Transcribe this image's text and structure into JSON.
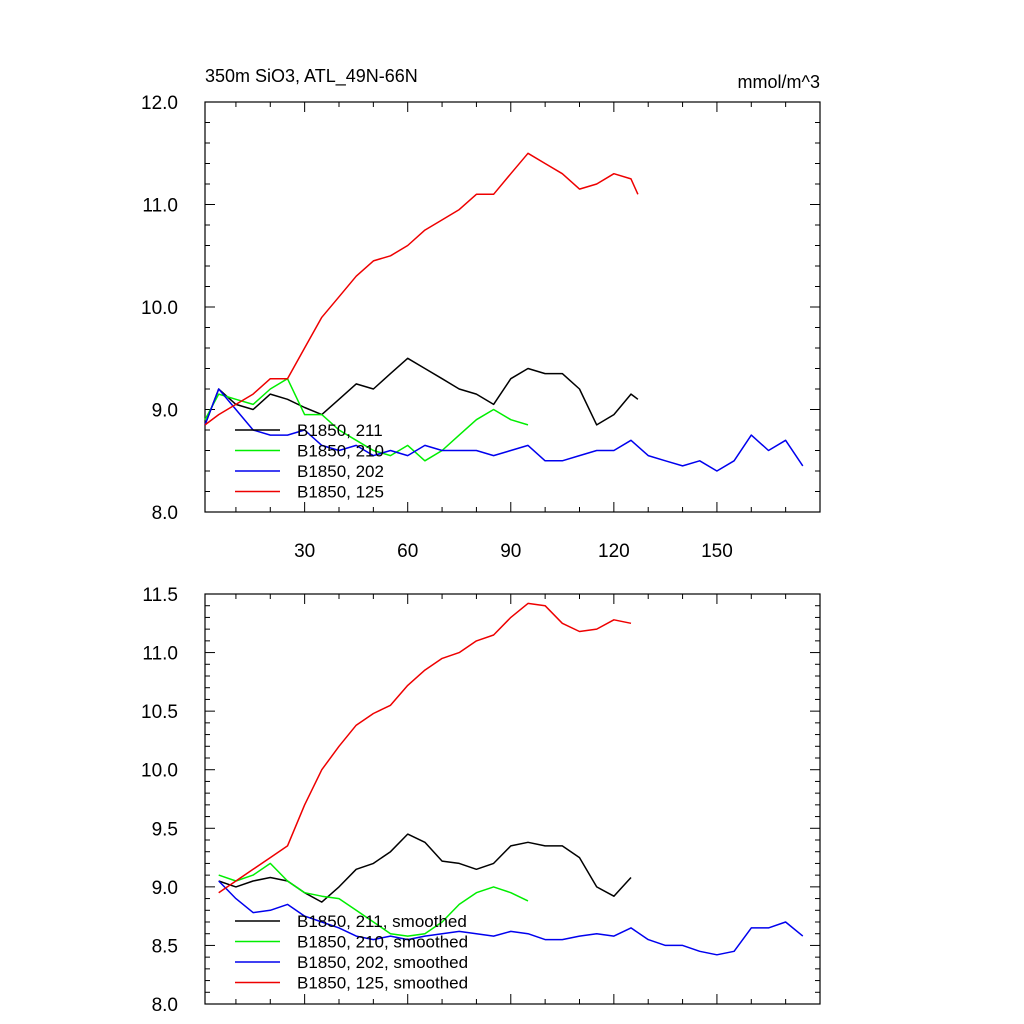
{
  "chart_data": [
    {
      "type": "line",
      "title": "350m SiO3, ATL_49N-66N",
      "units": "mmol/m^3",
      "xlim": [
        1,
        180
      ],
      "ylim": [
        8.0,
        12.0
      ],
      "xticks": [
        30,
        60,
        90,
        120,
        150
      ],
      "xtick_labels": [
        "30",
        "60",
        "90",
        "120",
        "150"
      ],
      "yticks": [
        8.0,
        9.0,
        10.0,
        11.0,
        12.0
      ],
      "ytick_labels": [
        "8.0",
        "9.0",
        "10.0",
        "11.0",
        "12.0"
      ],
      "legend_position": "bottom-left",
      "colors": {
        "211": "#000000",
        "210": "#00ee00",
        "202": "#0000ee",
        "125": "#ee0000"
      },
      "series": [
        {
          "name": "B1850, 211",
          "color": "#000000",
          "x": [
            1,
            5,
            10,
            15,
            20,
            25,
            30,
            35,
            40,
            45,
            50,
            55,
            60,
            65,
            70,
            75,
            80,
            85,
            90,
            95,
            100,
            105,
            110,
            115,
            120,
            125,
            127
          ],
          "y": [
            8.85,
            9.2,
            9.05,
            9.0,
            9.15,
            9.1,
            9.02,
            8.95,
            9.1,
            9.25,
            9.2,
            9.35,
            9.5,
            9.4,
            9.3,
            9.2,
            9.15,
            9.05,
            9.3,
            9.4,
            9.35,
            9.35,
            9.2,
            8.85,
            8.95,
            9.15,
            9.1
          ]
        },
        {
          "name": "B1850, 210",
          "color": "#00ee00",
          "x": [
            1,
            5,
            10,
            15,
            20,
            25,
            30,
            35,
            40,
            45,
            50,
            55,
            60,
            65,
            70,
            75,
            80,
            85,
            90,
            95
          ],
          "y": [
            8.9,
            9.15,
            9.1,
            9.05,
            9.2,
            9.3,
            8.95,
            8.95,
            8.8,
            8.7,
            8.6,
            8.55,
            8.65,
            8.5,
            8.6,
            8.75,
            8.9,
            9.0,
            8.9,
            8.85
          ]
        },
        {
          "name": "B1850, 202",
          "color": "#0000ee",
          "x": [
            1,
            5,
            10,
            15,
            20,
            25,
            30,
            35,
            40,
            45,
            50,
            55,
            60,
            65,
            70,
            75,
            80,
            85,
            90,
            95,
            100,
            105,
            110,
            115,
            120,
            125,
            130,
            135,
            140,
            145,
            150,
            155,
            160,
            165,
            170,
            175
          ],
          "y": [
            8.85,
            9.2,
            9.0,
            8.8,
            8.75,
            8.75,
            8.8,
            8.65,
            8.6,
            8.65,
            8.55,
            8.6,
            8.55,
            8.65,
            8.6,
            8.6,
            8.6,
            8.55,
            8.6,
            8.65,
            8.5,
            8.5,
            8.55,
            8.6,
            8.6,
            8.7,
            8.55,
            8.5,
            8.45,
            8.5,
            8.4,
            8.5,
            8.75,
            8.6,
            8.7,
            8.45
          ]
        },
        {
          "name": "B1850, 125",
          "color": "#ee0000",
          "x": [
            1,
            5,
            10,
            15,
            20,
            25,
            30,
            35,
            40,
            45,
            50,
            55,
            60,
            65,
            70,
            75,
            80,
            85,
            90,
            95,
            100,
            105,
            110,
            115,
            120,
            125,
            127
          ],
          "y": [
            8.85,
            8.95,
            9.05,
            9.15,
            9.3,
            9.3,
            9.6,
            9.9,
            10.1,
            10.3,
            10.45,
            10.5,
            10.6,
            10.75,
            10.85,
            10.95,
            11.1,
            11.1,
            11.3,
            11.5,
            11.4,
            11.3,
            11.15,
            11.2,
            11.3,
            11.25,
            11.1
          ]
        }
      ]
    },
    {
      "type": "line",
      "xlim": [
        1,
        180
      ],
      "ylim": [
        8.0,
        11.5
      ],
      "xticks": [
        30,
        60,
        90,
        120,
        150
      ],
      "yticks": [
        8.0,
        8.5,
        9.0,
        9.5,
        10.0,
        10.5,
        11.0,
        11.5
      ],
      "ytick_labels": [
        "8.0",
        "8.5",
        "9.0",
        "9.5",
        "10.0",
        "10.5",
        "11.0",
        "11.5"
      ],
      "legend_position": "bottom-left",
      "series": [
        {
          "name": "B1850, 211, smoothed",
          "color": "#000000",
          "x": [
            5,
            10,
            15,
            20,
            25,
            30,
            35,
            40,
            45,
            50,
            55,
            60,
            65,
            70,
            75,
            80,
            85,
            90,
            95,
            100,
            105,
            110,
            115,
            120,
            125
          ],
          "y": [
            9.05,
            9.0,
            9.05,
            9.08,
            9.05,
            8.95,
            8.87,
            9.0,
            9.15,
            9.2,
            9.3,
            9.45,
            9.38,
            9.22,
            9.2,
            9.15,
            9.2,
            9.35,
            9.38,
            9.35,
            9.35,
            9.25,
            9.0,
            8.92,
            9.08
          ]
        },
        {
          "name": "B1850, 210, smoothed",
          "color": "#00ee00",
          "x": [
            5,
            10,
            15,
            20,
            25,
            30,
            35,
            40,
            45,
            50,
            55,
            60,
            65,
            70,
            75,
            80,
            85,
            90,
            95
          ],
          "y": [
            9.1,
            9.05,
            9.1,
            9.2,
            9.05,
            8.95,
            8.92,
            8.9,
            8.8,
            8.7,
            8.6,
            8.58,
            8.6,
            8.7,
            8.85,
            8.95,
            9.0,
            8.95,
            8.88
          ]
        },
        {
          "name": "B1850, 202, smoothed",
          "color": "#0000ee",
          "x": [
            5,
            10,
            15,
            20,
            25,
            30,
            35,
            40,
            45,
            50,
            55,
            60,
            65,
            70,
            75,
            80,
            85,
            90,
            95,
            100,
            105,
            110,
            115,
            120,
            125,
            130,
            135,
            140,
            145,
            150,
            155,
            160,
            165,
            170,
            175
          ],
          "y": [
            9.05,
            8.9,
            8.78,
            8.8,
            8.85,
            8.75,
            8.7,
            8.65,
            8.58,
            8.55,
            8.58,
            8.55,
            8.58,
            8.6,
            8.62,
            8.6,
            8.58,
            8.62,
            8.6,
            8.55,
            8.55,
            8.58,
            8.6,
            8.58,
            8.65,
            8.55,
            8.5,
            8.5,
            8.45,
            8.42,
            8.45,
            8.65,
            8.65,
            8.7,
            8.58
          ]
        },
        {
          "name": "B1850, 125, smoothed",
          "color": "#ee0000",
          "x": [
            5,
            10,
            15,
            20,
            25,
            30,
            35,
            40,
            45,
            50,
            55,
            60,
            65,
            70,
            75,
            80,
            85,
            90,
            95,
            100,
            105,
            110,
            115,
            120,
            125
          ],
          "y": [
            8.95,
            9.05,
            9.15,
            9.25,
            9.35,
            9.7,
            10.0,
            10.2,
            10.38,
            10.48,
            10.55,
            10.72,
            10.85,
            10.95,
            11.0,
            11.1,
            11.15,
            11.3,
            11.42,
            11.4,
            11.25,
            11.18,
            11.2,
            11.28,
            11.25
          ]
        }
      ]
    }
  ]
}
